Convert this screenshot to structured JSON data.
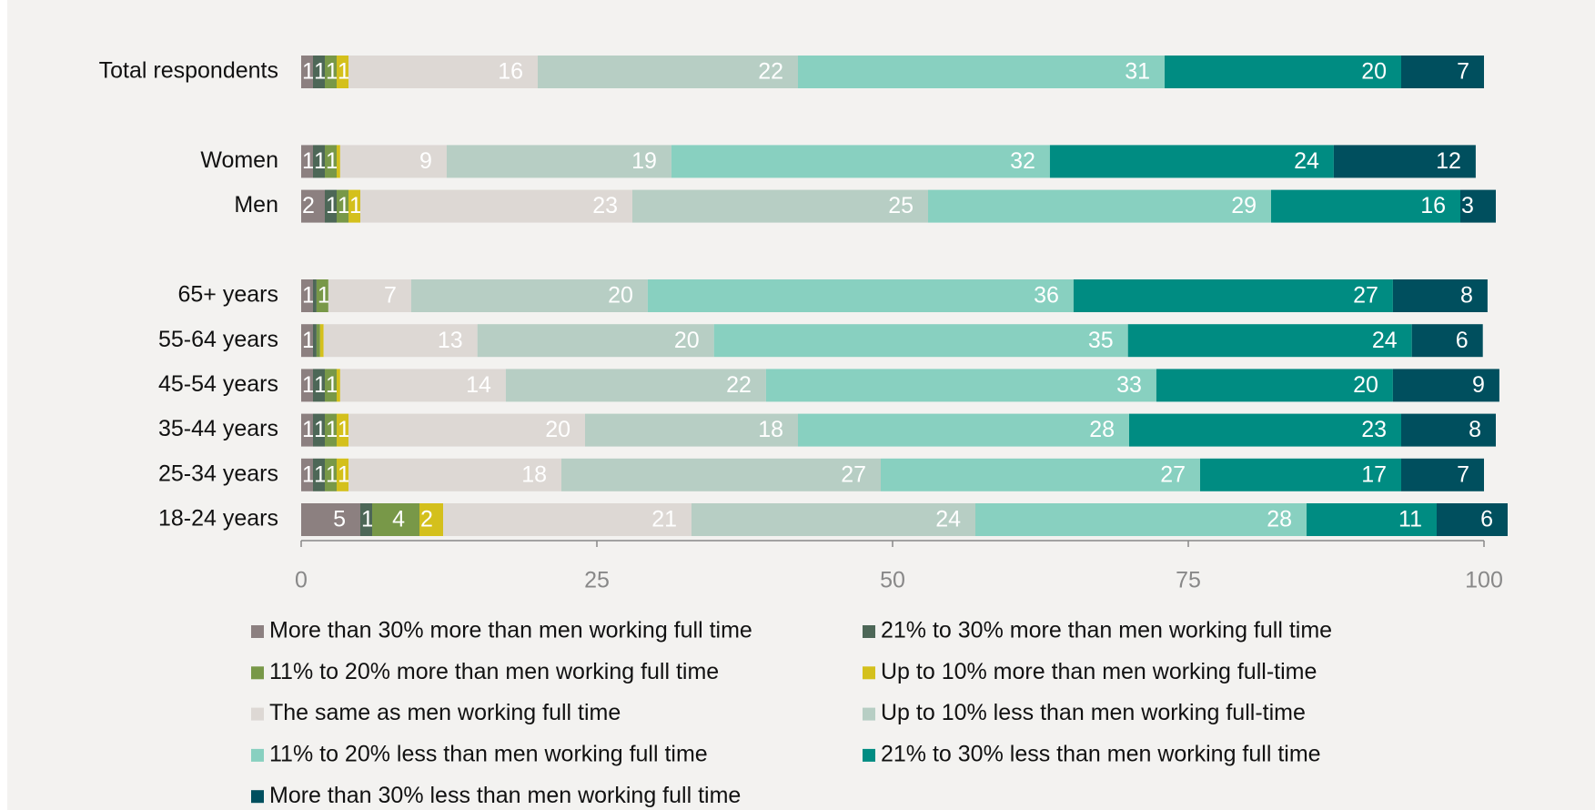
{
  "chart_data": {
    "type": "stacked-barh",
    "categories": [
      "Total respondents",
      null,
      "Women",
      "Men",
      null,
      "65+ years",
      "55-64 years",
      "45-54 years",
      "35-44 years",
      "25-34 years",
      "18-24 years"
    ],
    "xlim": [
      0,
      100
    ],
    "xticks": [
      0,
      25,
      50,
      75,
      100
    ],
    "legend": "bottom",
    "series": [
      {
        "name": "More than 30% more than men working full time",
        "color": "#8c8080",
        "values": [
          1,
          null,
          1,
          2,
          null,
          1,
          1,
          1,
          1,
          1,
          5
        ]
      },
      {
        "name": "21% to 30% more than men working full time",
        "color": "#4d6757",
        "values": [
          1,
          null,
          1,
          1,
          null,
          0.3,
          0.3,
          1,
          1,
          1,
          1
        ]
      },
      {
        "name": "11% to 20% more than men working full time",
        "color": "#789848",
        "values": [
          1,
          null,
          1,
          1,
          null,
          1,
          0.3,
          1,
          1,
          1,
          4
        ]
      },
      {
        "name": "Up to 10% more than men working full-time",
        "color": "#d4c01c",
        "values": [
          1,
          null,
          0.3,
          1,
          null,
          0,
          0.3,
          0.3,
          1,
          1,
          2
        ]
      },
      {
        "name": "The same as men working full time",
        "color": "#ddd8d4",
        "values": [
          16,
          null,
          9,
          23,
          null,
          7,
          13,
          14,
          20,
          18,
          21
        ]
      },
      {
        "name": "Up to 10% less than men working full-time",
        "color": "#b7cec4",
        "values": [
          22,
          null,
          19,
          25,
          null,
          20,
          20,
          22,
          18,
          27,
          24
        ]
      },
      {
        "name": "11% to 20% less than men working full time",
        "color": "#88d0c0",
        "values": [
          31,
          null,
          32,
          29,
          null,
          36,
          35,
          33,
          28,
          27,
          28
        ]
      },
      {
        "name": "21% to 30% less than men working full time",
        "color": "#008c82",
        "values": [
          20,
          null,
          24,
          16,
          null,
          27,
          24,
          20,
          23,
          17,
          11
        ]
      },
      {
        "name": "More than 30% less than men working full time",
        "color": "#004f5e",
        "values": [
          7,
          null,
          12,
          3,
          null,
          8,
          6,
          9,
          8,
          7,
          6
        ]
      }
    ]
  }
}
